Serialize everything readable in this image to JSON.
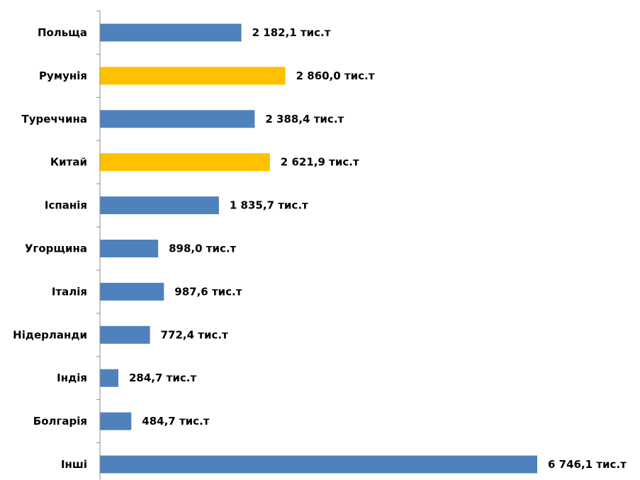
{
  "chart_data": {
    "type": "bar",
    "orientation": "horizontal",
    "categories": [
      "Польща",
      "Румунія",
      "Туреччина",
      "Китай",
      "Іспанія",
      "Угорщина",
      "Італія",
      "Нідерланди",
      "Індія",
      "Болгарія",
      "Інші"
    ],
    "values": [
      2182.1,
      2860.0,
      2388.4,
      2621.9,
      1835.7,
      898.0,
      987.6,
      772.4,
      284.7,
      484.7,
      6746.1
    ],
    "data_labels": [
      "2 182,1 тис.т",
      "2 860,0 тис.т",
      "2 388,4 тис.т",
      "2 621,9 тис.т",
      "1 835,7 тис.т",
      "898,0 тис.т",
      "987,6 тис.т",
      "772,4 тис.т",
      "284,7 тис.т",
      "484,7 тис.т",
      "6 746,1 тис.т"
    ],
    "highlighted": [
      false,
      true,
      false,
      true,
      false,
      false,
      false,
      false,
      false,
      false,
      false
    ],
    "colors": {
      "default": "#4F81BD",
      "highlight": "#FFC000",
      "axis": "#8C8C8C"
    },
    "title": "",
    "xlabel": "",
    "ylabel": "",
    "xlim": [
      0,
      6746.1
    ],
    "grid": false,
    "legend": "none"
  }
}
